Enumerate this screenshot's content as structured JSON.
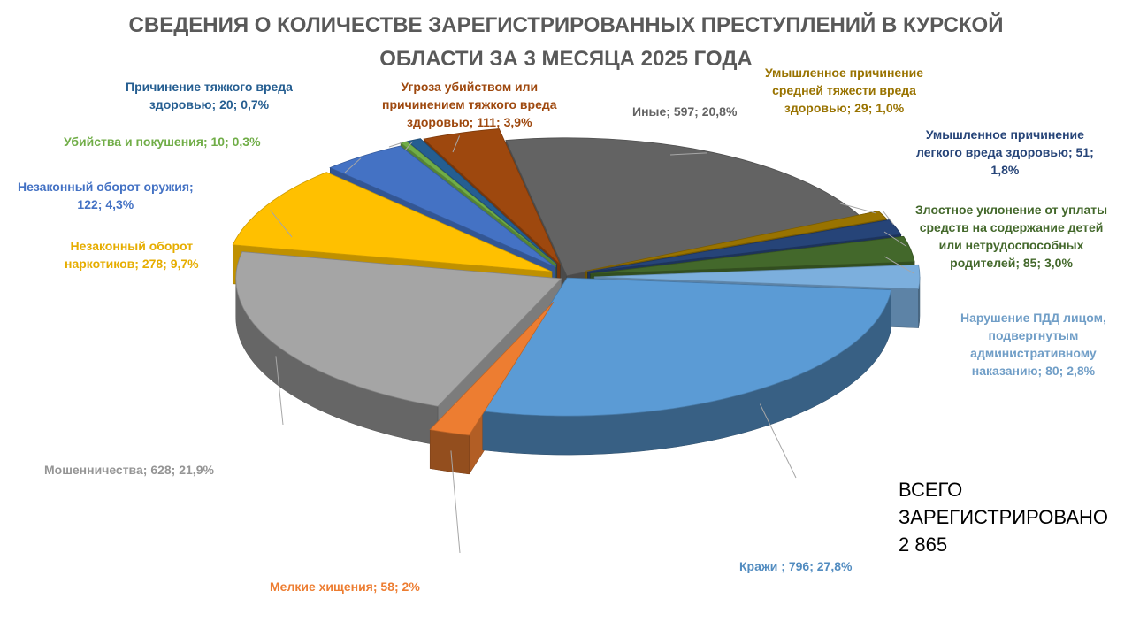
{
  "title_lines": [
    "СВЕДЕНИЯ О КОЛИЧЕСТВЕ ЗАРЕГИСТРИРОВАННЫХ ПРЕСТУПЛЕНИЙ В КУРСКОЙ",
    "ОБЛАСТИ ЗА 3 МЕСЯЦА 2025 ГОДА"
  ],
  "total": {
    "lines": [
      "ВСЕГО",
      "ЗАРЕГИСТРИРОВАНО",
      "2 865"
    ]
  },
  "chart_data": {
    "type": "pie",
    "style": "3d-exploded",
    "total": 2865,
    "slices": [
      {
        "name": "Кражи",
        "value": 796,
        "percent": 27.8,
        "color": "#5B9BD5",
        "label_lines": [
          "Кражи ; 796; 27,8%"
        ]
      },
      {
        "name": "Мелкие хищения",
        "value": 58,
        "percent": 2.0,
        "color": "#ED7D31",
        "label_lines": [
          "Мелкие хищения; 58; 2%"
        ]
      },
      {
        "name": "Мошенничества",
        "value": 628,
        "percent": 21.9,
        "color": "#A5A5A5",
        "label_lines": [
          "Мошенничества; 628; 21,9%"
        ]
      },
      {
        "name": "Незаконный оборот наркотиков",
        "value": 278,
        "percent": 9.7,
        "color": "#FFC000",
        "label_lines": [
          "Незаконный оборот",
          "наркотиков; 278; 9,7%"
        ]
      },
      {
        "name": "Незаконный оборот оружия",
        "value": 122,
        "percent": 4.3,
        "color": "#4472C4",
        "label_lines": [
          "Незаконный оборот оружия;",
          "122; 4,3%"
        ]
      },
      {
        "name": "Убийства и покушения",
        "value": 10,
        "percent": 0.3,
        "color": "#70AD47",
        "label_lines": [
          "Убийства и покушения; 10; 0,3%"
        ]
      },
      {
        "name": "Причинение тяжкого вреда здоровью",
        "value": 20,
        "percent": 0.7,
        "color": "#255E91",
        "label_lines": [
          "Причинение тяжкого вреда",
          "здоровью; 20; 0,7%"
        ]
      },
      {
        "name": "Угроза убийством или причинением тяжкого вреда здоровью",
        "value": 111,
        "percent": 3.9,
        "color": "#9E480E",
        "label_lines": [
          "Угроза убийством или",
          "причинением тяжкого вреда",
          "здоровью; 111; 3,9%"
        ]
      },
      {
        "name": "Иные",
        "value": 597,
        "percent": 20.8,
        "color": "#636363",
        "label_lines": [
          "Иные; 597; 20,8%"
        ]
      },
      {
        "name": "Умышленное причинение средней тяжести вреда здоровью",
        "value": 29,
        "percent": 1.0,
        "color": "#997300",
        "label_lines": [
          "Умышленное причинение",
          "средней тяжести вреда",
          "здоровью; 29; 1,0%"
        ]
      },
      {
        "name": "Умышленное причинение легкого вреда здоровью",
        "value": 51,
        "percent": 1.8,
        "color": "#264478",
        "label_lines": [
          "Умышленное причинение",
          "легкого вреда здоровью; 51;",
          "1,8%"
        ]
      },
      {
        "name": "Злостное уклонение от уплаты средств на содержание детей или нетрудоспособных родителей",
        "value": 85,
        "percent": 3.0,
        "color": "#43682B",
        "label_lines": [
          "Злостное уклонение от уплаты",
          "средств на содержание детей",
          "или нетрудоспособных",
          "родителей; 85; 3,0%"
        ]
      },
      {
        "name": "Нарушение ПДД лицом, подвергнутым административному наказанию",
        "value": 80,
        "percent": 2.8,
        "color": "#7CAFDD",
        "label_lines": [
          "Нарушение ПДД лицом,",
          "подвергнутым",
          "административному",
          "наказанию; 80; 2,8%"
        ]
      }
    ]
  }
}
